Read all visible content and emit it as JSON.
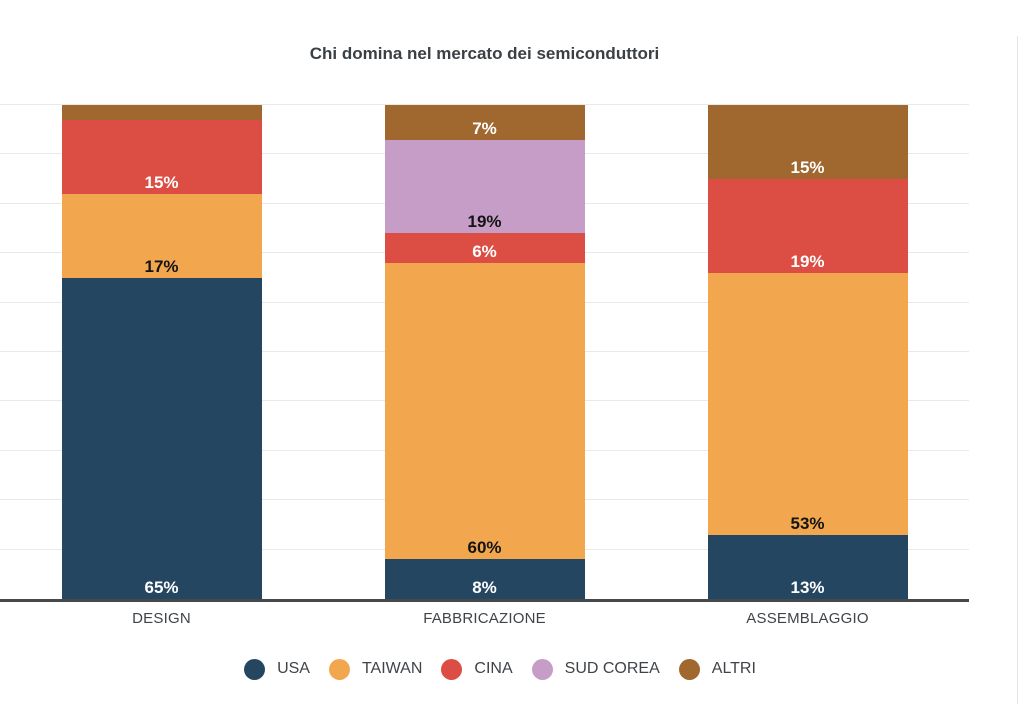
{
  "chart_data": {
    "type": "bar",
    "stacked": true,
    "title": "Chi domina nel mercato dei semiconduttori",
    "categories": [
      "DESIGN",
      "FABBRICAZIONE",
      "ASSEMBLAGGIO"
    ],
    "series": [
      {
        "name": "USA",
        "color": "#254661",
        "label_color": "#ffffff",
        "values": [
          65,
          8,
          13
        ],
        "labels": [
          "65%",
          "8%",
          "13%"
        ]
      },
      {
        "name": "TAIWAN",
        "color": "#F2A74E",
        "label_color": "#141414",
        "values": [
          17,
          60,
          53
        ],
        "labels": [
          "17%",
          "60%",
          "53%"
        ]
      },
      {
        "name": "CINA",
        "color": "#DC4E43",
        "label_color": "#ffffff",
        "values": [
          15,
          6,
          19
        ],
        "labels": [
          "15%",
          "6%",
          "19%"
        ]
      },
      {
        "name": "SUD COREA",
        "color": "#C69DC7",
        "label_color": "#141414",
        "values": [
          0,
          19,
          0
        ],
        "labels": [
          "",
          "19%",
          ""
        ]
      },
      {
        "name": "ALTRI",
        "color": "#A0672F",
        "label_color": "#ffffff",
        "values": [
          3,
          7,
          15
        ],
        "labels": [
          "",
          "7%",
          "15%"
        ]
      }
    ],
    "ylim": [
      0,
      100
    ],
    "grid": {
      "shown": true,
      "interval": 10,
      "color": "#e9e9e9"
    },
    "legend_position": "bottom",
    "xlabel": "",
    "ylabel": ""
  }
}
